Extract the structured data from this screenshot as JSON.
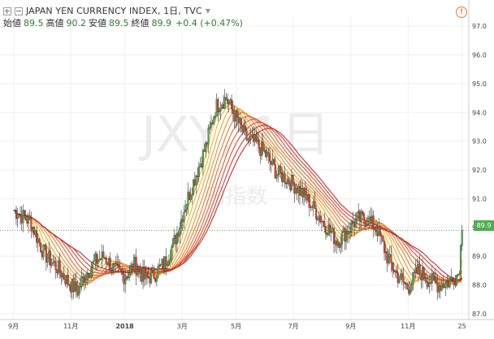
{
  "header": {
    "symbol_line": "JAPAN YEN CURRENCY INDEX, 1日, TVC",
    "open_label": "始値",
    "open_value": "89.5",
    "high_label": "高値",
    "high_value": "90.2",
    "low_label": "安値",
    "low_value": "89.5",
    "close_label": "終値",
    "close_value": "89.9",
    "change": "+0.4 (+0.47%)"
  },
  "alert_icon": "!",
  "watermark": {
    "symbol": "JXY, 1日",
    "name": "円指数"
  },
  "current_price_tag": "89.9",
  "colors": {
    "up": "#4caf50",
    "down": "#e53935",
    "price_line": "#4caf50",
    "ribbon_fast": "#fbc02d",
    "ribbon_slow": "#c62828",
    "grid": "#f1f1f1"
  },
  "chart_data": {
    "type": "candlestick",
    "title": "JAPAN YEN CURRENCY INDEX, 1日, TVC",
    "ylim": [
      86.8,
      97.4
    ],
    "y_ticks": [
      "87.0",
      "88.0",
      "89.0",
      "90.0",
      "91.0",
      "92.0",
      "93.0",
      "94.0",
      "95.0",
      "96.0",
      "97.0"
    ],
    "x_ticks": [
      "9月",
      "11月",
      "2018",
      "3月",
      "5月",
      "7月",
      "9月",
      "11月",
      "25"
    ],
    "last_price": 89.9,
    "price_series": [
      [
        2017.67,
        90.6
      ],
      [
        2017.72,
        90.2
      ],
      [
        2017.76,
        89.1
      ],
      [
        2017.8,
        88.6
      ],
      [
        2017.84,
        88.0
      ],
      [
        2017.86,
        87.8
      ],
      [
        2017.88,
        88.3
      ],
      [
        2017.91,
        88.8
      ],
      [
        2017.94,
        89.0
      ],
      [
        2017.97,
        88.5
      ],
      [
        2018.0,
        88.3
      ],
      [
        2018.03,
        88.7
      ],
      [
        2018.06,
        88.2
      ],
      [
        2018.09,
        88.4
      ],
      [
        2018.12,
        88.8
      ],
      [
        2018.15,
        89.6
      ],
      [
        2018.18,
        90.8
      ],
      [
        2018.21,
        91.8
      ],
      [
        2018.24,
        92.8
      ],
      [
        2018.27,
        94.2
      ],
      [
        2018.3,
        94.5
      ],
      [
        2018.33,
        93.8
      ],
      [
        2018.36,
        93.1
      ],
      [
        2018.39,
        92.9
      ],
      [
        2018.42,
        92.5
      ],
      [
        2018.45,
        91.9
      ],
      [
        2018.48,
        91.7
      ],
      [
        2018.51,
        91.4
      ],
      [
        2018.54,
        91.0
      ],
      [
        2018.57,
        90.5
      ],
      [
        2018.6,
        90.0
      ],
      [
        2018.63,
        89.5
      ],
      [
        2018.66,
        89.9
      ],
      [
        2018.69,
        90.3
      ],
      [
        2018.72,
        90.3
      ],
      [
        2018.75,
        89.9
      ],
      [
        2018.78,
        88.9
      ],
      [
        2018.81,
        88.3
      ],
      [
        2018.84,
        87.9
      ],
      [
        2018.87,
        88.5
      ],
      [
        2018.9,
        88.2
      ],
      [
        2018.93,
        88.0
      ],
      [
        2018.96,
        88.1
      ],
      [
        2018.99,
        88.4
      ],
      [
        2019.0,
        89.9
      ]
    ],
    "ribbon_periods": [
      5,
      10,
      15,
      20,
      25,
      30,
      35,
      40,
      45,
      50
    ]
  }
}
